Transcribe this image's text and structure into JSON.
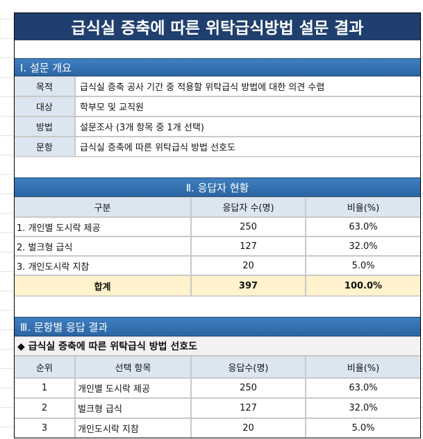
{
  "title": "급식실 증축에 따른 위탁급식방법 설문 결과",
  "section1": {
    "heading": "Ⅰ. 설문 개요",
    "rows": [
      [
        "목적",
        "급식실 증축 공사 기간 중 적용할 위탁급식 방법에 대한 의견 수렴"
      ],
      [
        "대상",
        "학부모 및 교직원"
      ],
      [
        "방법",
        "설문조사 (3개 항목 중 1개 선택)"
      ],
      [
        "문항",
        "급식실 증축에 따른 위탁급식 방법 선호도"
      ]
    ]
  },
  "section2": {
    "heading": "Ⅱ. 응답자 현황",
    "columns": [
      "구분",
      "응답자 수(명)",
      "비율(%)"
    ],
    "rows": [
      [
        "1. 개인별 도시락 제공",
        "250",
        "63.0%"
      ],
      [
        "2. 벌크형 급식",
        "127",
        "32.0%"
      ],
      [
        "3. 개인도시락 지참",
        "20",
        "5.0%"
      ]
    ],
    "total": [
      "합계",
      "397",
      "100.0%"
    ]
  },
  "section3": {
    "heading": "Ⅲ. 문항별 응답 결과",
    "question": "◆ 급식실 증축에 따른 위탁급식 방법 선호도",
    "columns": [
      "순위",
      "선택 항목",
      "응답수(명)",
      "비율(%)"
    ],
    "rows": [
      [
        "1",
        "개인별 도시락 제공",
        "250",
        "63.0%"
      ],
      [
        "2",
        "벌크형 급식",
        "127",
        "32.0%"
      ],
      [
        "3",
        "개인도시락 지참",
        "20",
        "5.0%"
      ]
    ]
  }
}
